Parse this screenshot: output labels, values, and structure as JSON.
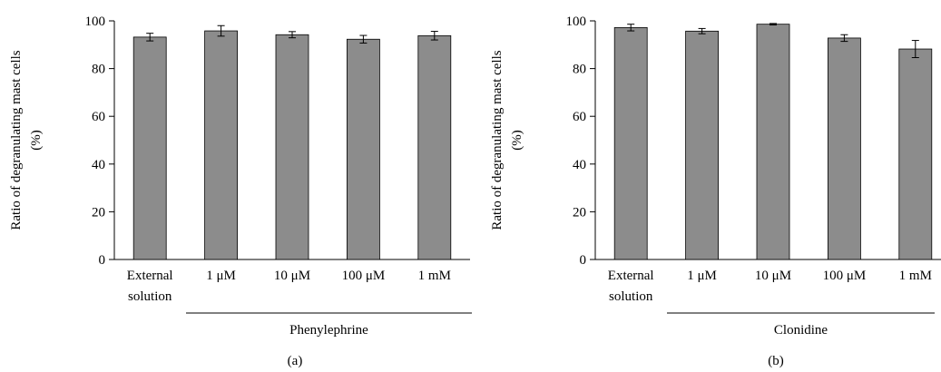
{
  "chart_data": [
    {
      "type": "bar",
      "panel_label": "(a)",
      "ylabel_line1": "Ratio of degranulating mast cells",
      "ylabel_line2": "(%)",
      "ylim": [
        0,
        100
      ],
      "yticks": [
        "0",
        "20",
        "40",
        "60",
        "80",
        "100"
      ],
      "categories": [
        {
          "line1": "External",
          "line2": "solution"
        },
        {
          "line1": "1 μM",
          "line2": ""
        },
        {
          "line1": "10 μM",
          "line2": ""
        },
        {
          "line1": "100 μM",
          "line2": ""
        },
        {
          "line1": "1 mM",
          "line2": ""
        }
      ],
      "values": [
        93.2,
        95.8,
        94.2,
        92.3,
        93.8
      ],
      "errors": [
        1.6,
        2.2,
        1.3,
        1.6,
        1.8
      ],
      "group_label": "Phenylephrine",
      "grid": false,
      "bar_color": "#8c8c8c"
    },
    {
      "type": "bar",
      "panel_label": "(b)",
      "ylabel_line1": "Ratio of degranulating mast cells",
      "ylabel_line2": "(%)",
      "ylim": [
        0,
        100
      ],
      "yticks": [
        "0",
        "20",
        "40",
        "60",
        "80",
        "100"
      ],
      "categories": [
        {
          "line1": "External",
          "line2": "solution"
        },
        {
          "line1": "1 μM",
          "line2": ""
        },
        {
          "line1": "10 μM",
          "line2": ""
        },
        {
          "line1": "100 μM",
          "line2": ""
        },
        {
          "line1": "1 mM",
          "line2": ""
        }
      ],
      "values": [
        97.2,
        95.7,
        98.6,
        92.8,
        88.2
      ],
      "errors": [
        1.4,
        1.1,
        0.3,
        1.4,
        3.6
      ],
      "group_label": "Clonidine",
      "grid": false,
      "bar_color": "#8c8c8c"
    }
  ]
}
